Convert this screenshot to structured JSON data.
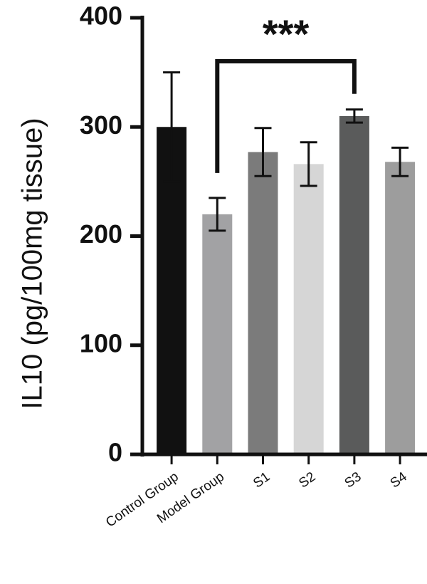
{
  "chart_data": {
    "type": "bar",
    "y_label": "IL10 (pg/100mg tissue)",
    "categories": [
      "Control Group",
      "Model Group",
      "S1",
      "S2",
      "S3",
      "S4"
    ],
    "values": [
      300,
      220,
      277,
      266,
      310,
      268
    ],
    "errors": [
      50,
      15,
      22,
      20,
      6,
      13
    ],
    "colors": [
      "#111111",
      "#a2a2a4",
      "#7b7b7b",
      "#d6d6d6",
      "#5a5b5b",
      "#9d9d9d"
    ],
    "ylim": [
      0,
      400
    ],
    "yticks": [
      0,
      100,
      200,
      300,
      400
    ],
    "significance": {
      "label": "***",
      "groups": [
        "Model Group",
        "S3"
      ]
    }
  }
}
